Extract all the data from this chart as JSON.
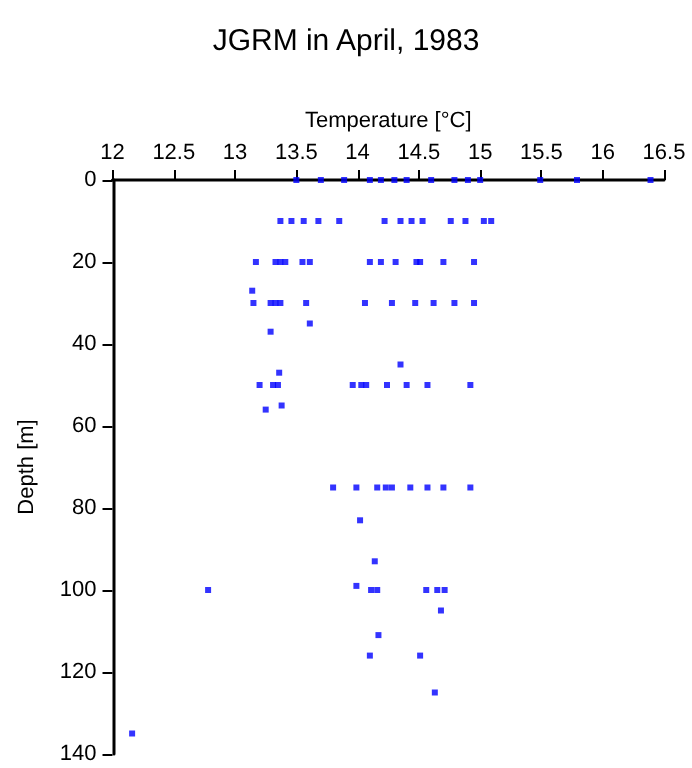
{
  "chart_data": {
    "type": "scatter",
    "title": "JGRM in April, 1983",
    "xlabel": "Temperature [°C]",
    "ylabel": "Depth [m]",
    "xlim": [
      12,
      16.5
    ],
    "xticks": [
      12,
      12.5,
      13,
      13.5,
      14,
      14.5,
      15,
      15.5,
      16,
      16.5
    ],
    "ylim": [
      140,
      0
    ],
    "yticks": [
      0,
      20,
      40,
      60,
      80,
      100,
      120,
      140
    ],
    "grid": false,
    "marker": "square",
    "series": [
      {
        "color": "#0000ff",
        "x": [
          13.5,
          13.7,
          13.89,
          14.1,
          14.19,
          14.3,
          14.4,
          14.6,
          14.79,
          14.9,
          15.0,
          15.49,
          15.79,
          16.39,
          13.37,
          13.46,
          13.56,
          13.68,
          13.85,
          14.22,
          14.35,
          14.44,
          14.53,
          14.76,
          14.88,
          15.03,
          15.09,
          13.17,
          13.33,
          13.37,
          13.41,
          13.55,
          13.61,
          14.1,
          14.19,
          14.31,
          14.48,
          14.51,
          14.7,
          14.95,
          13.14,
          13.15,
          13.29,
          13.33,
          13.37,
          13.58,
          14.06,
          14.28,
          14.47,
          14.62,
          14.79,
          14.95,
          13.61,
          13.29,
          14.35,
          13.36,
          13.2,
          13.31,
          13.35,
          13.96,
          14.03,
          14.07,
          14.24,
          14.4,
          14.57,
          14.92,
          13.38,
          13.25,
          13.8,
          13.99,
          14.16,
          14.23,
          14.28,
          14.43,
          14.57,
          14.7,
          14.92,
          14.02,
          14.14,
          13.99,
          12.78,
          14.11,
          14.16,
          14.56,
          14.65,
          14.71,
          14.68,
          14.17,
          14.1,
          14.51,
          14.63,
          12.16
        ],
        "values": [
          0,
          0,
          0,
          0,
          0,
          0,
          0,
          0,
          0,
          0,
          0,
          0,
          0,
          0,
          10,
          10,
          10,
          10,
          10,
          10,
          10,
          10,
          10,
          10,
          10,
          10,
          10,
          20,
          20,
          20,
          20,
          20,
          20,
          20,
          20,
          20,
          20,
          20,
          20,
          20,
          27,
          30,
          30,
          30,
          30,
          30,
          30,
          30,
          30,
          30,
          30,
          30,
          35,
          37,
          45,
          47,
          50,
          50,
          50,
          50,
          50,
          50,
          50,
          50,
          50,
          50,
          55,
          56,
          75,
          75,
          75,
          75,
          75,
          75,
          75,
          75,
          75,
          83,
          93,
          99,
          100,
          100,
          100,
          100,
          100,
          100,
          105,
          111,
          116,
          116,
          125,
          135
        ]
      }
    ]
  }
}
